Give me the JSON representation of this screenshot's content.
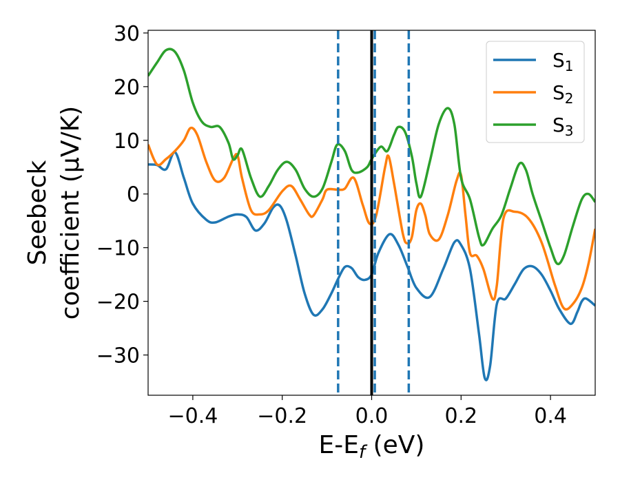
{
  "chart_data": {
    "type": "line",
    "xlabel": "E-E",
    "xlabel_sub": "f",
    "xlabel_unit": " (eV)",
    "ylabel_line1": "Seebeck",
    "ylabel_line2": "coefficient  (μV/K)",
    "xlim": [
      -0.5,
      0.5
    ],
    "ylim": [
      -37.5,
      30.5
    ],
    "xticks": [
      -0.4,
      -0.2,
      0.0,
      0.2,
      0.4
    ],
    "xtick_labels": [
      "−0.4",
      "−0.2",
      "0.0",
      "0.2",
      "0.4"
    ],
    "yticks": [
      -30,
      -20,
      -10,
      0,
      10,
      20,
      30
    ],
    "ytick_labels": [
      "−30",
      "−20",
      "−10",
      "0",
      "10",
      "20",
      "30"
    ],
    "grid": false,
    "legend_position": "top-right",
    "vertical_lines": [
      {
        "x": -0.075,
        "style": "dashed",
        "color": "#1f77b4"
      },
      {
        "x": 0.0,
        "style": "solid",
        "color": "#000000"
      },
      {
        "x": 0.007,
        "style": "dashed",
        "color": "#1f77b4"
      },
      {
        "x": 0.083,
        "style": "dashed",
        "color": "#1f77b4"
      }
    ],
    "series": [
      {
        "name": "S",
        "name_sub": "1",
        "color": "#1f77b4",
        "points": [
          [
            -0.5,
            5.5
          ],
          [
            -0.48,
            5.4
          ],
          [
            -0.46,
            4.6
          ],
          [
            -0.44,
            7.8
          ],
          [
            -0.42,
            3
          ],
          [
            -0.4,
            -1.8
          ],
          [
            -0.37,
            -4.8
          ],
          [
            -0.35,
            -5.3
          ],
          [
            -0.32,
            -4.2
          ],
          [
            -0.3,
            -3.8
          ],
          [
            -0.28,
            -4.3
          ],
          [
            -0.26,
            -6.8
          ],
          [
            -0.24,
            -5.5
          ],
          [
            -0.22,
            -2.5
          ],
          [
            -0.205,
            -2.2
          ],
          [
            -0.19,
            -5
          ],
          [
            -0.17,
            -11.5
          ],
          [
            -0.15,
            -18.5
          ],
          [
            -0.13,
            -22.5
          ],
          [
            -0.11,
            -21.5
          ],
          [
            -0.09,
            -18.5
          ],
          [
            -0.075,
            -15.8
          ],
          [
            -0.06,
            -13.6
          ],
          [
            -0.045,
            -13.8
          ],
          [
            -0.03,
            -15.5
          ],
          [
            -0.015,
            -16
          ],
          [
            0.0,
            -15
          ],
          [
            0.015,
            -11
          ],
          [
            0.04,
            -7.5
          ],
          [
            0.06,
            -9.5
          ],
          [
            0.08,
            -13.5
          ],
          [
            0.1,
            -17.5
          ],
          [
            0.13,
            -19.2
          ],
          [
            0.16,
            -14
          ],
          [
            0.185,
            -9
          ],
          [
            0.2,
            -9.5
          ],
          [
            0.22,
            -14
          ],
          [
            0.24,
            -26
          ],
          [
            0.253,
            -34.3
          ],
          [
            0.265,
            -32
          ],
          [
            0.28,
            -20.5
          ],
          [
            0.3,
            -19.5
          ],
          [
            0.32,
            -16.8
          ],
          [
            0.34,
            -14
          ],
          [
            0.36,
            -13.5
          ],
          [
            0.38,
            -15
          ],
          [
            0.4,
            -18
          ],
          [
            0.42,
            -21.5
          ],
          [
            0.445,
            -24.2
          ],
          [
            0.46,
            -22
          ],
          [
            0.47,
            -20
          ],
          [
            0.48,
            -19.5
          ],
          [
            0.5,
            -20.8
          ]
        ]
      },
      {
        "name": "S",
        "name_sub": "2",
        "color": "#ff7f0e",
        "points": [
          [
            -0.5,
            9.2
          ],
          [
            -0.48,
            5.5
          ],
          [
            -0.46,
            6.5
          ],
          [
            -0.44,
            8
          ],
          [
            -0.42,
            10
          ],
          [
            -0.405,
            12.3
          ],
          [
            -0.39,
            11
          ],
          [
            -0.37,
            6
          ],
          [
            -0.35,
            2.5
          ],
          [
            -0.33,
            3
          ],
          [
            -0.31,
            6.5
          ],
          [
            -0.3,
            7.2
          ],
          [
            -0.29,
            3
          ],
          [
            -0.27,
            -3
          ],
          [
            -0.25,
            -3.8
          ],
          [
            -0.23,
            -3
          ],
          [
            -0.2,
            0.5
          ],
          [
            -0.18,
            1.5
          ],
          [
            -0.16,
            -1
          ],
          [
            -0.14,
            -3.8
          ],
          [
            -0.13,
            -4
          ],
          [
            -0.11,
            -1
          ],
          [
            -0.1,
            0.8
          ],
          [
            -0.075,
            0.8
          ],
          [
            -0.06,
            1
          ],
          [
            -0.04,
            3
          ],
          [
            -0.02,
            -2
          ],
          [
            -0.005,
            -5.5
          ],
          [
            0.01,
            -4
          ],
          [
            0.03,
            5
          ],
          [
            0.038,
            7
          ],
          [
            0.05,
            2
          ],
          [
            0.07,
            -7.5
          ],
          [
            0.08,
            -9.2
          ],
          [
            0.09,
            -8
          ],
          [
            0.1,
            -3
          ],
          [
            0.11,
            -1.8
          ],
          [
            0.12,
            -4
          ],
          [
            0.13,
            -7.5
          ],
          [
            0.15,
            -8.5
          ],
          [
            0.17,
            -4
          ],
          [
            0.19,
            2.5
          ],
          [
            0.2,
            3.5
          ],
          [
            0.21,
            -4
          ],
          [
            0.22,
            -11
          ],
          [
            0.235,
            -11.5
          ],
          [
            0.25,
            -14
          ],
          [
            0.27,
            -19.5
          ],
          [
            0.28,
            -17
          ],
          [
            0.295,
            -4.5
          ],
          [
            0.32,
            -3.3
          ],
          [
            0.35,
            -4.5
          ],
          [
            0.38,
            -9
          ],
          [
            0.41,
            -17
          ],
          [
            0.43,
            -21.3
          ],
          [
            0.45,
            -20.5
          ],
          [
            0.47,
            -17.5
          ],
          [
            0.485,
            -13
          ],
          [
            0.5,
            -6.5
          ]
        ]
      },
      {
        "name": "S",
        "name_sub": "3",
        "color": "#2ca02c",
        "points": [
          [
            -0.5,
            22
          ],
          [
            -0.48,
            24.5
          ],
          [
            -0.46,
            26.8
          ],
          [
            -0.44,
            26.5
          ],
          [
            -0.42,
            23
          ],
          [
            -0.4,
            17
          ],
          [
            -0.38,
            13.5
          ],
          [
            -0.36,
            12.5
          ],
          [
            -0.34,
            12.5
          ],
          [
            -0.32,
            9.5
          ],
          [
            -0.31,
            6.5
          ],
          [
            -0.3,
            7.2
          ],
          [
            -0.29,
            8.3
          ],
          [
            -0.27,
            3
          ],
          [
            -0.25,
            -0.5
          ],
          [
            -0.23,
            1.5
          ],
          [
            -0.21,
            4.5
          ],
          [
            -0.19,
            6
          ],
          [
            -0.17,
            4.5
          ],
          [
            -0.15,
            1
          ],
          [
            -0.13,
            -0.5
          ],
          [
            -0.11,
            1
          ],
          [
            -0.09,
            6
          ],
          [
            -0.077,
            9.2
          ],
          [
            -0.06,
            8
          ],
          [
            -0.045,
            4.5
          ],
          [
            -0.03,
            4
          ],
          [
            -0.01,
            5
          ],
          [
            0.0,
            6.5
          ],
          [
            0.02,
            8.8
          ],
          [
            0.035,
            8
          ],
          [
            0.05,
            11
          ],
          [
            0.06,
            12.5
          ],
          [
            0.075,
            11.5
          ],
          [
            0.09,
            7
          ],
          [
            0.1,
            2
          ],
          [
            0.11,
            -0.5
          ],
          [
            0.13,
            6
          ],
          [
            0.15,
            13
          ],
          [
            0.17,
            16
          ],
          [
            0.185,
            13
          ],
          [
            0.2,
            3
          ],
          [
            0.22,
            -1
          ],
          [
            0.24,
            -8
          ],
          [
            0.25,
            -9.5
          ],
          [
            0.27,
            -6.5
          ],
          [
            0.29,
            -4
          ],
          [
            0.31,
            1
          ],
          [
            0.33,
            5.6
          ],
          [
            0.345,
            4.5
          ],
          [
            0.36,
            0
          ],
          [
            0.38,
            -5
          ],
          [
            0.4,
            -10
          ],
          [
            0.415,
            -13
          ],
          [
            0.43,
            -11.5
          ],
          [
            0.45,
            -6
          ],
          [
            0.47,
            -1
          ],
          [
            0.485,
            0
          ],
          [
            0.5,
            -1.5
          ]
        ]
      }
    ]
  }
}
